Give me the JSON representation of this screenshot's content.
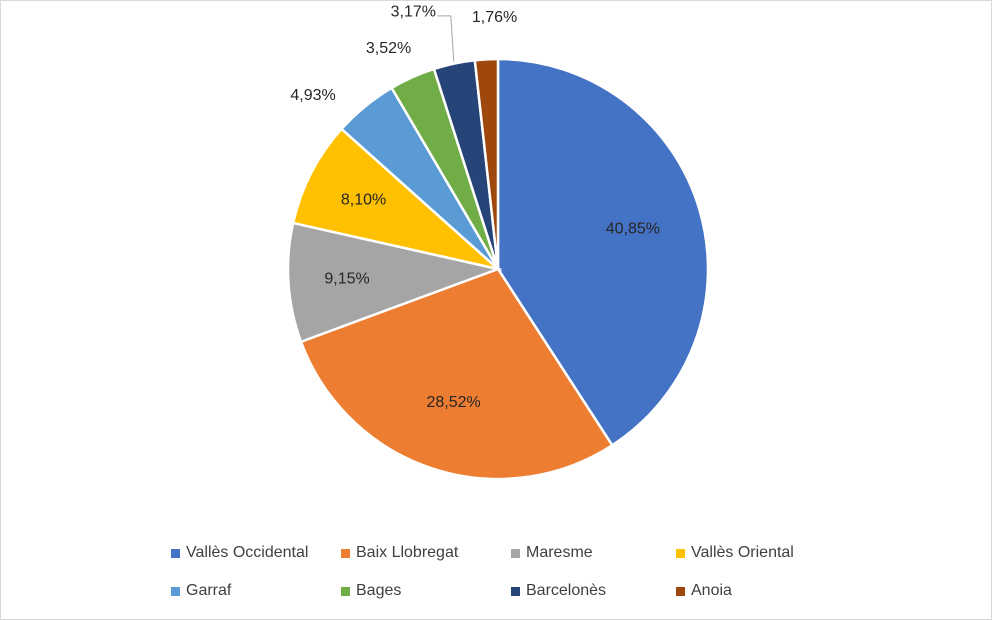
{
  "chart_data": {
    "type": "pie",
    "categories": [
      "Vallès Occidental",
      "Baix Llobregat",
      "Maresme",
      "Vallès Oriental",
      "Garraf",
      "Bages",
      "Barcelonès",
      "Anoia"
    ],
    "values": [
      40.85,
      28.52,
      9.15,
      8.1,
      4.93,
      3.52,
      3.17,
      1.76
    ],
    "value_labels": [
      "40,85%",
      "28,52%",
      "9,15%",
      "8,10%",
      "4,93%",
      "3,52%",
      "3,17%",
      "1,76%"
    ],
    "colors": [
      "#4472c4",
      "#ed7d31",
      "#a5a5a5",
      "#ffc000",
      "#5b9bd5",
      "#70ad47",
      "#264478",
      "#9e480e"
    ],
    "start_angle": "12 o'clock",
    "direction": "clockwise",
    "legend_position": "bottom"
  }
}
